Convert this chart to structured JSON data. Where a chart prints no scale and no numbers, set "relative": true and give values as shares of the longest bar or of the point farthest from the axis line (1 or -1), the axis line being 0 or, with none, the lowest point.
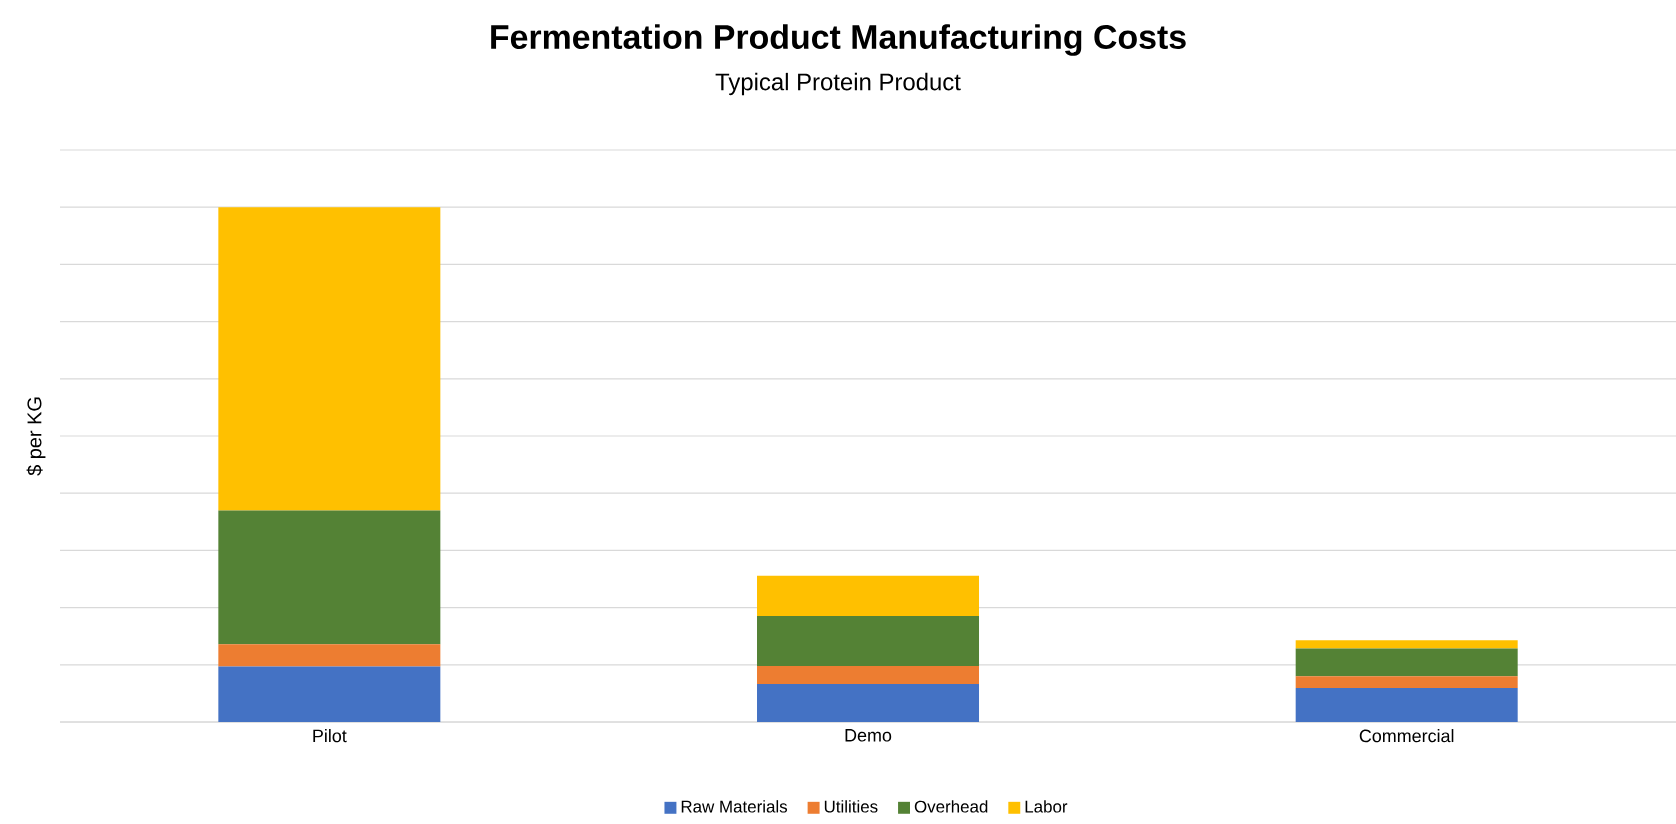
{
  "chart_data": {
    "type": "bar",
    "title": "Fermentation Product Manufacturing Costs",
    "subtitle": "Typical Protein Product",
    "ylabel": "$ per KG",
    "categories": [
      "Pilot",
      "Demo",
      "Commercial"
    ],
    "stacked": true,
    "relative": true,
    "grid": "y",
    "legend": "bottom",
    "series": [
      {
        "name": "Raw Materials",
        "color": "#4472c4",
        "values": [
          0.108,
          0.074,
          0.066
        ]
      },
      {
        "name": "Utilities",
        "color": "#ed7d31",
        "values": [
          0.043,
          0.035,
          0.023
        ]
      },
      {
        "name": "Overhead",
        "color": "#548235",
        "values": [
          0.26,
          0.097,
          0.054
        ]
      },
      {
        "name": "Labor",
        "color": "#ffc000",
        "values": [
          0.589,
          0.078,
          0.016
        ]
      }
    ]
  }
}
